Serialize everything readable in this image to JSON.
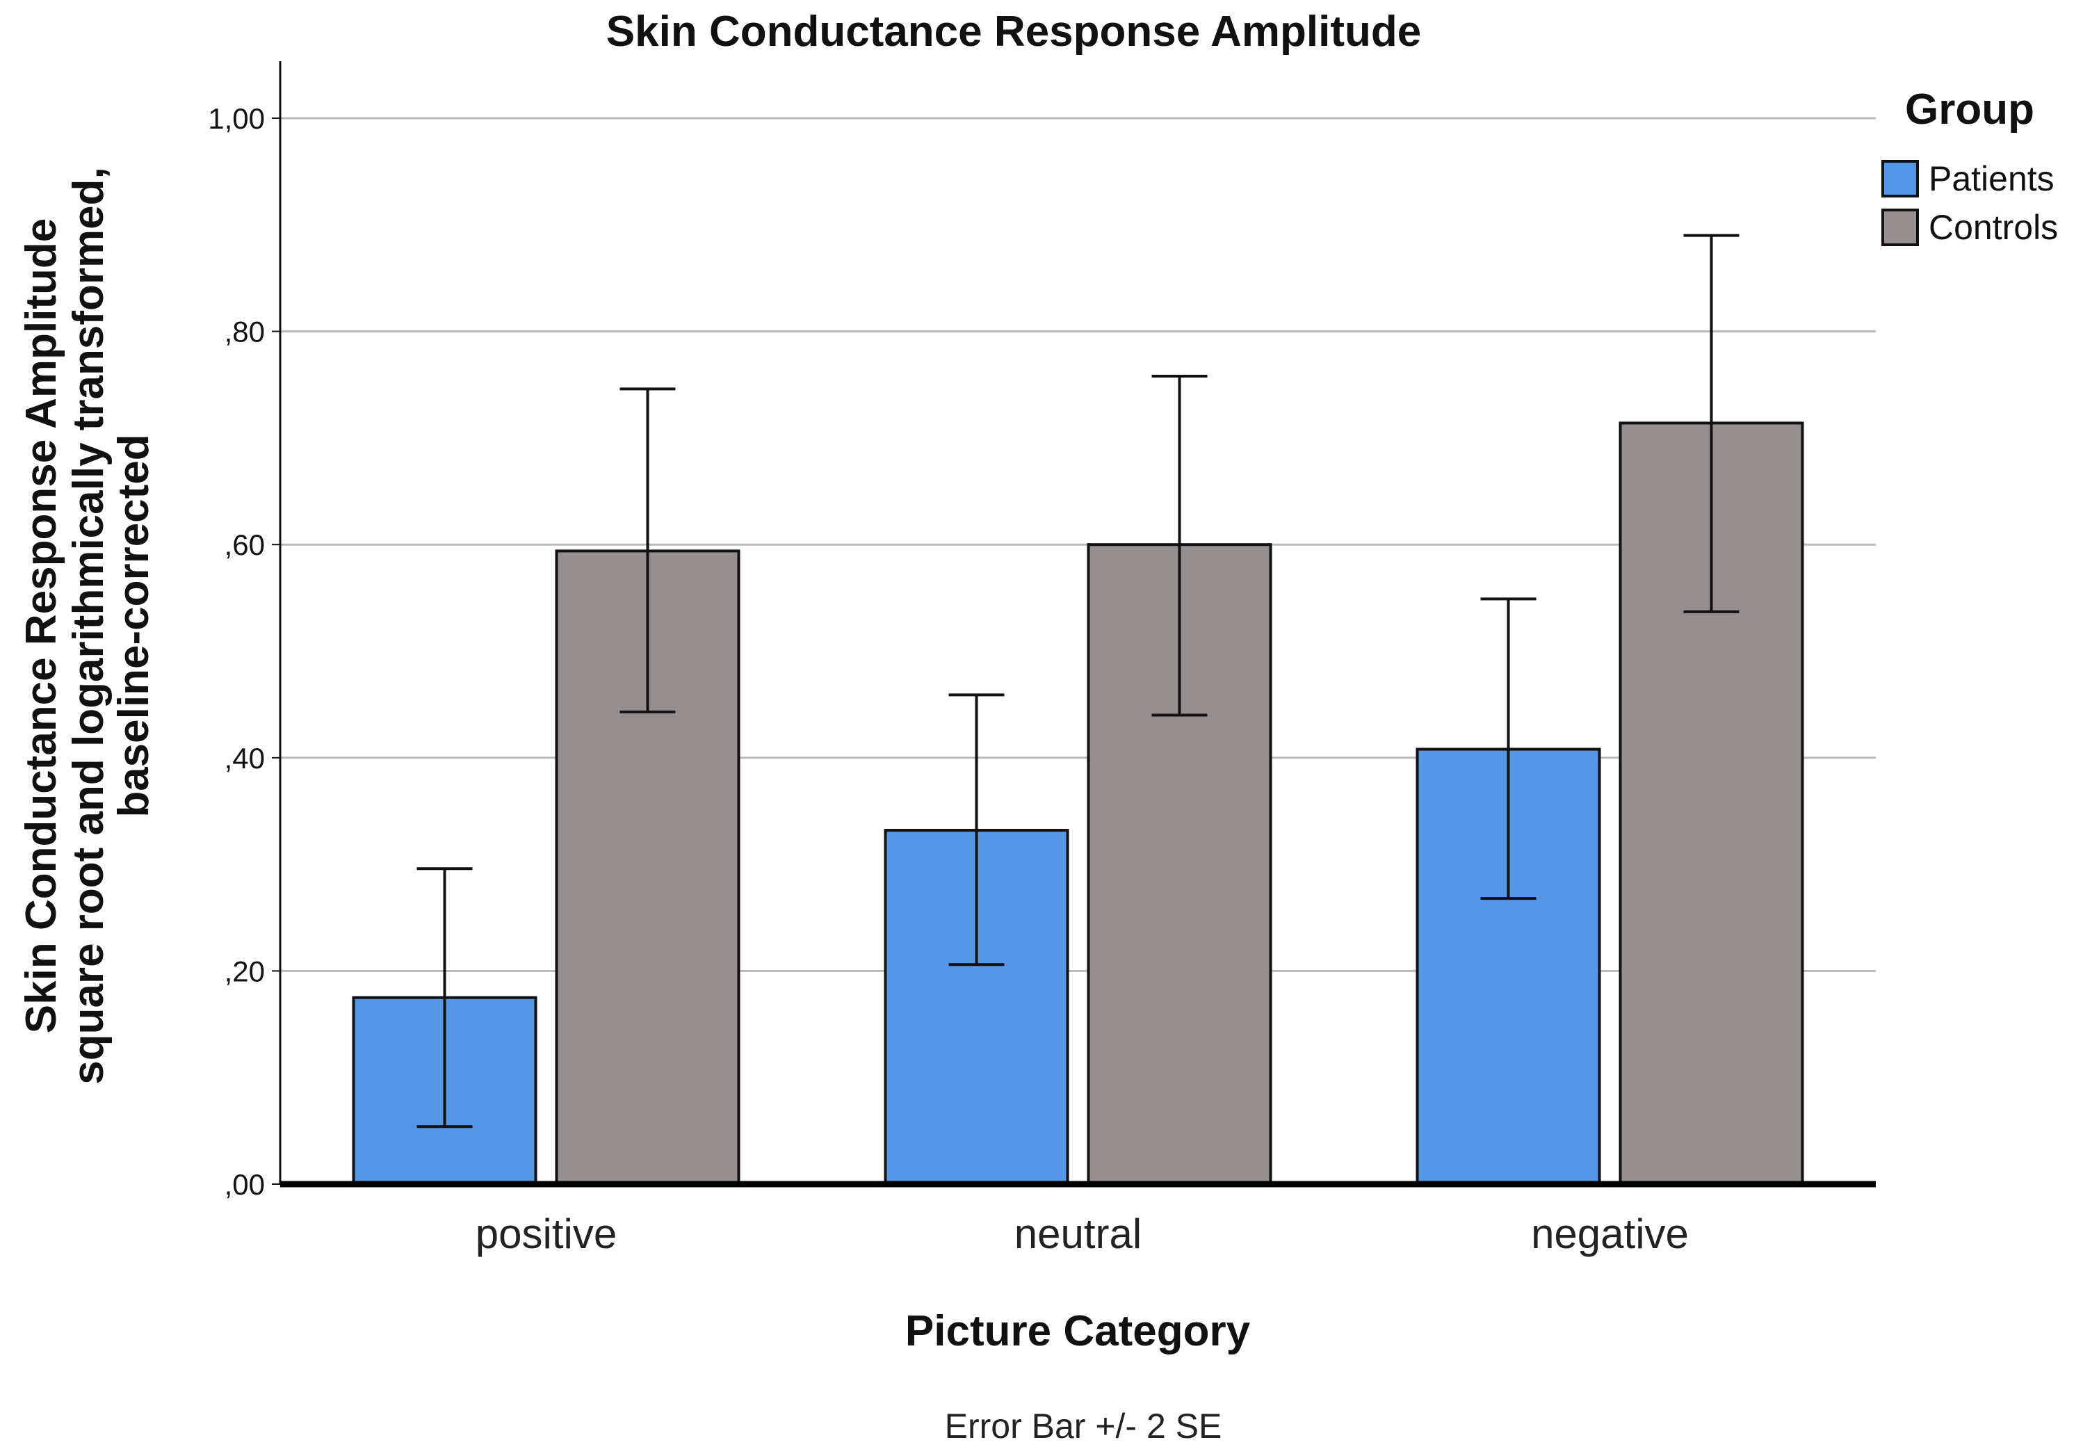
{
  "chart_data": {
    "type": "bar",
    "title": "Skin Conductance Response Amplitude",
    "xlabel": "Picture Category",
    "ylabel_lines": [
      "Skin Conductance Response Amplitude",
      "square root and logarithmically transformed,",
      "baseline-corrected"
    ],
    "categories": [
      "positive",
      "neutral",
      "negative"
    ],
    "ylim": [
      0,
      1.05
    ],
    "yticks": [
      0,
      0.2,
      0.4,
      0.6,
      0.8,
      1.0
    ],
    "ytick_labels": [
      ",00",
      ",20",
      ",40",
      ",60",
      ",80",
      "1,00"
    ],
    "grid": true,
    "legend": {
      "title": "Group",
      "position": "top-right"
    },
    "series": [
      {
        "name": "Patients",
        "color": "#5596e6",
        "values": [
          0.175,
          0.332,
          0.408
        ],
        "error_low": [
          0.054,
          0.206,
          0.268
        ],
        "error_high": [
          0.296,
          0.459,
          0.549
        ]
      },
      {
        "name": "Controls",
        "color": "#968f8f",
        "values": [
          0.594,
          0.6,
          0.714
        ],
        "error_low": [
          0.443,
          0.44,
          0.537
        ],
        "error_high": [
          0.746,
          0.758,
          0.89
        ]
      }
    ],
    "note": "Error Bar +/- 2 SE"
  }
}
